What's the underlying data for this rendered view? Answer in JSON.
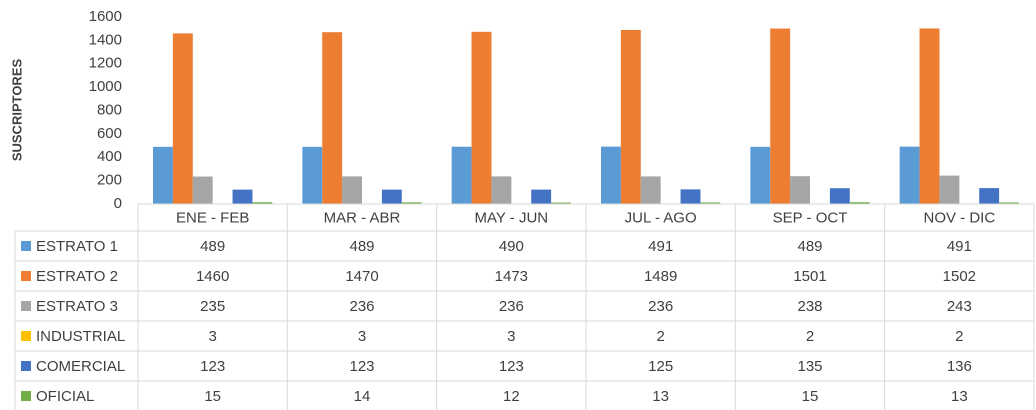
{
  "chart_data": {
    "type": "bar",
    "y_label": "SUSCRIPTORES",
    "categories": [
      "ENE - FEB",
      "MAR - ABR",
      "MAY - JUN",
      "JUL - AGO",
      "SEP - OCT",
      "NOV - DIC"
    ],
    "series": [
      {
        "name": "ESTRATO 1",
        "color": "#5b9bd5",
        "values": [
          489,
          489,
          490,
          491,
          489,
          491
        ]
      },
      {
        "name": "ESTRATO 2",
        "color": "#ed7d31",
        "values": [
          1460,
          1470,
          1473,
          1489,
          1501,
          1502
        ]
      },
      {
        "name": "ESTRATO 3",
        "color": "#a5a5a5",
        "values": [
          235,
          236,
          236,
          236,
          238,
          243
        ]
      },
      {
        "name": "INDUSTRIAL",
        "color": "#ffc000",
        "values": [
          3,
          3,
          3,
          2,
          2,
          2
        ]
      },
      {
        "name": "COMERCIAL",
        "color": "#4472c4",
        "values": [
          123,
          123,
          123,
          125,
          135,
          136
        ]
      },
      {
        "name": "OFICIAL",
        "color": "#70ad47",
        "values": [
          15,
          14,
          12,
          13,
          15,
          13
        ]
      }
    ],
    "ylim": [
      0,
      1600
    ],
    "yticks": [
      0,
      200,
      400,
      600,
      800,
      1000,
      1200,
      1400,
      1600
    ],
    "data_table": true
  }
}
